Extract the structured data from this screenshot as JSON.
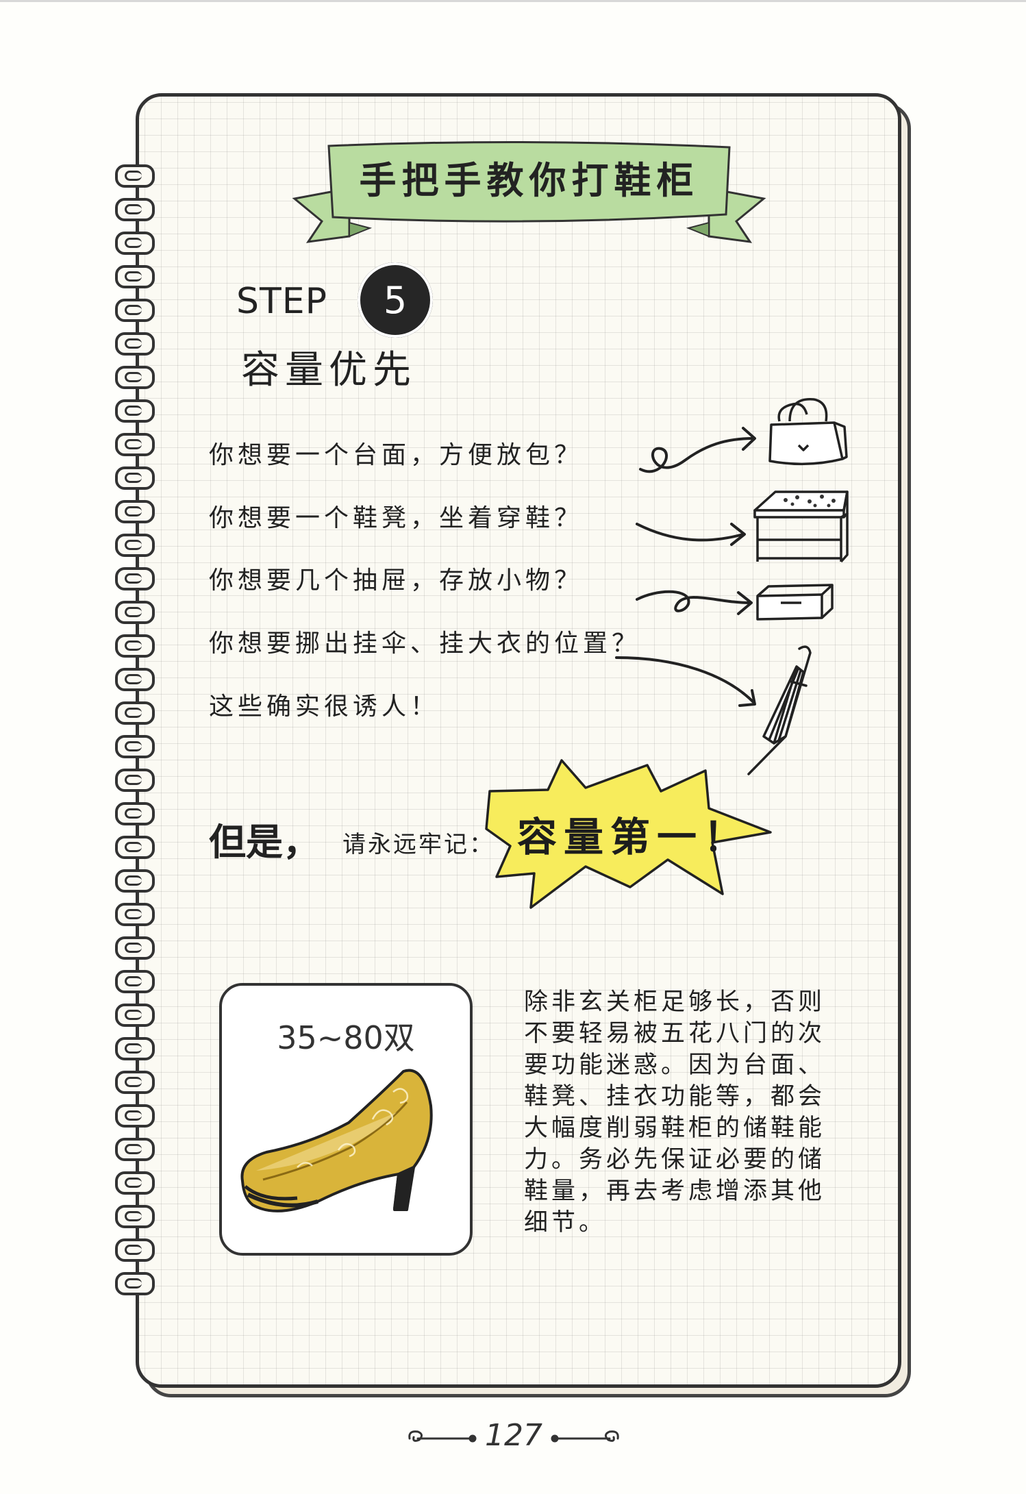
{
  "banner": {
    "title": "手把手教你打鞋柜"
  },
  "step": {
    "label": "STEP",
    "number": "5"
  },
  "section": {
    "title": "容量优先"
  },
  "questions": [
    "你想要一个台面，方便放包？",
    "你想要一个鞋凳，坐着穿鞋？",
    "你想要几个抽屉，存放小物？",
    "你想要挪出挂伞、挂大衣的位置？",
    "这些确实很诱人！"
  ],
  "icons": [
    "handbag-icon",
    "shoe-bench-icon",
    "drawer-icon",
    "umbrella-icon"
  ],
  "emphasis": {
    "but": "但是，",
    "remember": "请永远牢记：",
    "highlight": "容量第一！"
  },
  "shoe_card": {
    "pairs": "35~80双"
  },
  "body_text": "除非玄关柜足够长，否则不要轻易被五花八门的次要功能迷惑。因为台面、鞋凳、挂衣功能等，都会大幅度削弱鞋柜的储鞋能力。务必先保证必要的储鞋量，再去考虑增添其他细节。",
  "page_number": "127",
  "colors": {
    "banner_green": "#b9dca0",
    "burst_yellow": "#f7ec5c",
    "shoe_gold": "#d9b43a"
  }
}
